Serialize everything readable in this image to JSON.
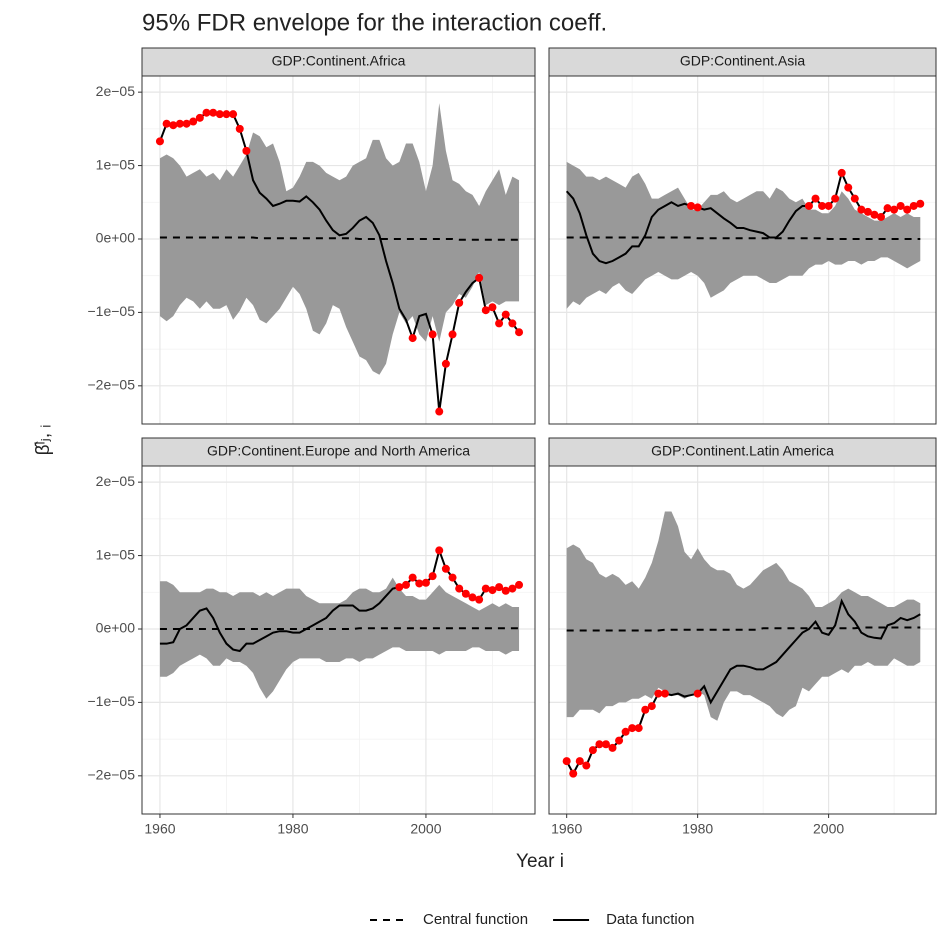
{
  "chart_data": {
    "type": "facet-envelope",
    "title": "95% FDR envelope for the interaction coeff.",
    "x_label": "Year i",
    "y_label": "β̂ˡⱼ, ᵢ",
    "xlim": [
      1957.3,
      2016.4
    ],
    "xticks": [
      1960,
      1980,
      2000
    ],
    "xminor": [
      1970,
      1990,
      2010
    ],
    "ylim": [
      -2.52e-05,
      2.22e-05
    ],
    "yticks": [
      {
        "value": -2e-05,
        "label": "−2e−05"
      },
      {
        "value": -1e-05,
        "label": "−1e−05"
      },
      {
        "value": 0,
        "label": "0e+00"
      },
      {
        "value": 1e-05,
        "label": "1e−05"
      },
      {
        "value": 2e-05,
        "label": "2e−05"
      }
    ],
    "yminor": [
      -1.5e-05,
      -5e-06,
      5e-06,
      1.5e-05
    ],
    "grid": true,
    "band_color": "#999999",
    "outside_color": "#ff0000",
    "legend": "bottom",
    "series": [
      {
        "name": "Central function",
        "color": "#000000",
        "dash": true
      },
      {
        "name": "Data function",
        "color": "#000000",
        "dash": false
      }
    ],
    "x": [
      1960,
      1961,
      1962,
      1963,
      1964,
      1965,
      1966,
      1967,
      1968,
      1969,
      1970,
      1971,
      1972,
      1973,
      1974,
      1975,
      1976,
      1977,
      1978,
      1979,
      1980,
      1981,
      1982,
      1983,
      1984,
      1985,
      1986,
      1987,
      1988,
      1989,
      1990,
      1991,
      1992,
      1993,
      1994,
      1995,
      1996,
      1997,
      1998,
      1999,
      2000,
      2001,
      2002,
      2003,
      2004,
      2005,
      2006,
      2007,
      2008,
      2009,
      2010,
      2011,
      2012,
      2013,
      2014
    ],
    "panels": [
      {
        "title": "GDP:Continent.Africa",
        "upper": [
          1.1e-05,
          1.15e-05,
          1.1e-05,
          1e-05,
          8.5e-06,
          9e-06,
          9.5e-06,
          8.5e-06,
          9e-06,
          8e-06,
          9.5e-06,
          8.5e-06,
          1e-05,
          1.15e-05,
          1.45e-05,
          1.4e-05,
          1.25e-05,
          1.3e-05,
          1.05e-05,
          6.5e-06,
          7e-06,
          8.5e-06,
          1.05e-05,
          1.05e-05,
          1e-05,
          9e-06,
          8.5e-06,
          8e-06,
          8.5e-06,
          1e-05,
          1.05e-05,
          1.1e-05,
          1.35e-05,
          1.35e-05,
          1.1e-05,
          1e-05,
          1.05e-05,
          1.3e-05,
          1.3e-05,
          1.05e-05,
          6.5e-06,
          1e-05,
          1.85e-05,
          1.2e-05,
          8e-06,
          7.5e-06,
          6.5e-06,
          6e-06,
          4.5e-06,
          6.5e-06,
          8e-06,
          9.5e-06,
          6e-06,
          8.5e-06,
          8e-06
        ],
        "lower": [
          -1.05e-05,
          -1.12e-05,
          -1.05e-05,
          -9e-06,
          -8e-06,
          -8.5e-06,
          -9.5e-06,
          -8.5e-06,
          -9.5e-06,
          -9.5e-06,
          -9e-06,
          -1.1e-05,
          -9.8e-06,
          -8e-06,
          -9e-06,
          -1.1e-05,
          -1.15e-05,
          -1.05e-05,
          -9.5e-06,
          -8e-06,
          -6.5e-06,
          -7.5e-06,
          -9.5e-06,
          -1.25e-05,
          -1.3e-05,
          -1.15e-05,
          -9e-06,
          -9.5e-06,
          -1.2e-05,
          -1.4e-05,
          -1.6e-05,
          -1.65e-05,
          -1.8e-05,
          -1.85e-05,
          -1.7e-05,
          -1.3e-05,
          -1e-05,
          -1.15e-05,
          -1.05e-05,
          -1.3e-05,
          -1.4e-05,
          -1.05e-05,
          -1.4e-05,
          -1e-05,
          -9e-06,
          -7.5e-06,
          -8e-06,
          -6.5e-06,
          -4.5e-06,
          -9e-06,
          -8.5e-06,
          -9e-06,
          -8.5e-06,
          -8.5e-06,
          -8.5e-06
        ],
        "values": [
          [
            2e-07,
            2e-07,
            2e-07,
            2e-07,
            2e-07,
            2e-07,
            2e-07,
            2e-07,
            2e-07,
            2e-07,
            2e-07,
            2e-07,
            2e-07,
            2e-07,
            2e-07,
            1e-07,
            1e-07,
            1e-07,
            1e-07,
            1e-07,
            1e-07,
            1e-07,
            1e-07,
            1e-07,
            1e-07,
            1e-07,
            1e-07,
            1e-07,
            1e-07,
            1e-07,
            0,
            0,
            0,
            0,
            0,
            0,
            0,
            0,
            0,
            0,
            0,
            0,
            0,
            0,
            0,
            -1e-07,
            -1e-07,
            -1e-07,
            -1e-07,
            -1e-07,
            -1e-07,
            -1e-07,
            -1e-07,
            -1e-07,
            -1e-07
          ],
          [
            1.33e-05,
            1.57e-05,
            1.55e-05,
            1.57e-05,
            1.57e-05,
            1.6e-05,
            1.65e-05,
            1.72e-05,
            1.72e-05,
            1.7e-05,
            1.7e-05,
            1.7e-05,
            1.5e-05,
            1.2e-05,
            8e-06,
            6.3e-06,
            5.5e-06,
            4.5e-06,
            4.8e-06,
            5.2e-06,
            5.2e-06,
            5.1e-06,
            5.8e-06,
            5e-06,
            4e-06,
            2.5e-06,
            1.2e-06,
            5e-07,
            7e-07,
            1.5e-06,
            2.5e-06,
            3e-06,
            2.2e-06,
            5e-07,
            -3e-06,
            -6e-06,
            -9.5e-06,
            -1.1e-05,
            -1.35e-05,
            -1.05e-05,
            -1.02e-05,
            -1.3e-05,
            -2.35e-05,
            -1.7e-05,
            -1.3e-05,
            -8.7e-06,
            -7.2e-06,
            -6e-06,
            -5.3e-06,
            -9.7e-06,
            -9.3e-06,
            -1.15e-05,
            -1.03e-05,
            -1.15e-05,
            -1.27e-05
          ]
        ]
      },
      {
        "title": "GDP:Continent.Asia",
        "upper": [
          1.05e-05,
          1e-05,
          9.5e-06,
          8.5e-06,
          8.5e-06,
          8e-06,
          8.5e-06,
          8e-06,
          7.5e-06,
          7e-06,
          8.5e-06,
          9e-06,
          7.5e-06,
          5.5e-06,
          5.5e-06,
          6e-06,
          6.5e-06,
          7e-06,
          5.5e-06,
          4e-06,
          4e-06,
          5e-06,
          6e-06,
          6e-06,
          6.5e-06,
          5.5e-06,
          5e-06,
          5.5e-06,
          6e-06,
          6.5e-06,
          6.5e-06,
          5.5e-06,
          7e-06,
          6.5e-06,
          5.5e-06,
          5e-06,
          5.5e-06,
          4e-06,
          4e-06,
          3.5e-06,
          3.5e-06,
          4.5e-06,
          6.5e-06,
          5.5e-06,
          4e-06,
          3.5e-06,
          3e-06,
          2.5e-06,
          2.5e-06,
          3e-06,
          3.5e-06,
          3e-06,
          3.5e-06,
          3e-06,
          3e-06
        ],
        "lower": [
          -9.5e-06,
          -8.5e-06,
          -9e-06,
          -8e-06,
          -7.5e-06,
          -7e-06,
          -7.5e-06,
          -6.5e-06,
          -6e-06,
          -7e-06,
          -7.5e-06,
          -6.5e-06,
          -5.5e-06,
          -5e-06,
          -4.5e-06,
          -5e-06,
          -5.5e-06,
          -5.5e-06,
          -5e-06,
          -4.5e-06,
          -5e-06,
          -6e-06,
          -8e-06,
          -7.5e-06,
          -7e-06,
          -6e-06,
          -5.5e-06,
          -5e-06,
          -5e-06,
          -5e-06,
          -5.5e-06,
          -6e-06,
          -6e-06,
          -5.5e-06,
          -5e-06,
          -5e-06,
          -5e-06,
          -4e-06,
          -3.5e-06,
          -3.5e-06,
          -3e-06,
          -3.5e-06,
          -3.5e-06,
          -3e-06,
          -3e-06,
          -3.5e-06,
          -3e-06,
          -3e-06,
          -2.5e-06,
          -2.5e-06,
          -3e-06,
          -3.5e-06,
          -4e-06,
          -3.5e-06,
          -3e-06
        ],
        "values": [
          [
            2e-07,
            2e-07,
            2e-07,
            2e-07,
            2e-07,
            2e-07,
            2e-07,
            2e-07,
            2e-07,
            2e-07,
            2e-07,
            2e-07,
            2e-07,
            2e-07,
            2e-07,
            2e-07,
            2e-07,
            2e-07,
            2e-07,
            2e-07,
            1e-07,
            1e-07,
            1e-07,
            1e-07,
            1e-07,
            1e-07,
            1e-07,
            1e-07,
            1e-07,
            1e-07,
            1e-07,
            1e-07,
            1e-07,
            1e-07,
            1e-07,
            1e-07,
            1e-07,
            1e-07,
            1e-07,
            1e-07,
            0,
            0,
            0,
            0,
            0,
            0,
            0,
            0,
            0,
            0,
            0,
            0,
            0,
            0,
            0
          ],
          [
            6.5e-06,
            5.5e-06,
            3.5e-06,
            5e-07,
            -2e-06,
            -3e-06,
            -3.3e-06,
            -3e-06,
            -2.5e-06,
            -2e-06,
            -1e-06,
            -1e-06,
            5e-07,
            3e-06,
            4e-06,
            4.5e-06,
            5e-06,
            4.5e-06,
            4.8e-06,
            4.5e-06,
            4.3e-06,
            4e-06,
            4.2e-06,
            3.5e-06,
            2.8e-06,
            2.2e-06,
            1.5e-06,
            1.5e-06,
            1.2e-06,
            1e-06,
            8e-07,
            2e-07,
            2e-07,
            1e-06,
            2.5e-06,
            3.8e-06,
            4.5e-06,
            4.5e-06,
            5.5e-06,
            4.5e-06,
            4.5e-06,
            5.5e-06,
            9e-06,
            7e-06,
            5.5e-06,
            4e-06,
            3.7e-06,
            3.3e-06,
            3e-06,
            4.2e-06,
            4e-06,
            4.5e-06,
            4e-06,
            4.5e-06,
            4.8e-06
          ]
        ]
      },
      {
        "title": "GDP:Continent.Europe and North America",
        "upper": [
          6.5e-06,
          6.5e-06,
          6e-06,
          5e-06,
          5e-06,
          5e-06,
          5e-06,
          5.5e-06,
          5.5e-06,
          5e-06,
          5e-06,
          4.5e-06,
          5e-06,
          5e-06,
          5e-06,
          4.5e-06,
          5e-06,
          4.5e-06,
          5e-06,
          5.5e-06,
          5.5e-06,
          5.5e-06,
          4.5e-06,
          4e-06,
          3.5e-06,
          3.5e-06,
          3.5e-06,
          3.5e-06,
          4e-06,
          5e-06,
          5.5e-06,
          5.5e-06,
          5e-06,
          5e-06,
          5.5e-06,
          7e-06,
          5.5e-06,
          4.5e-06,
          4.5e-06,
          4e-06,
          4e-06,
          5e-06,
          6e-06,
          5e-06,
          4.5e-06,
          4e-06,
          3.5e-06,
          3e-06,
          2.5e-06,
          3e-06,
          3.5e-06,
          3e-06,
          3.5e-06,
          3e-06,
          3e-06
        ],
        "lower": [
          -6.5e-06,
          -6.5e-06,
          -6e-06,
          -5e-06,
          -4.5e-06,
          -4e-06,
          -3.5e-06,
          -4e-06,
          -5e-06,
          -5e-06,
          -4e-06,
          -4.5e-06,
          -4.5e-06,
          -5e-06,
          -6e-06,
          -8e-06,
          -9.5e-06,
          -8.5e-06,
          -7e-06,
          -5.5e-06,
          -4.5e-06,
          -4e-06,
          -4e-06,
          -4e-06,
          -4e-06,
          -4.5e-06,
          -4.5e-06,
          -4.5e-06,
          -4e-06,
          -4e-06,
          -4.5e-06,
          -4e-06,
          -4e-06,
          -3.5e-06,
          -3e-06,
          -2.5e-06,
          -2.5e-06,
          -3e-06,
          -3e-06,
          -3e-06,
          -3e-06,
          -3e-06,
          -3.5e-06,
          -3e-06,
          -3e-06,
          -3e-06,
          -3e-06,
          -2.5e-06,
          -2.5e-06,
          -3e-06,
          -3e-06,
          -3e-06,
          -3.5e-06,
          -3e-06,
          -3e-06
        ],
        "values": [
          [
            0,
            0,
            0,
            0,
            0,
            0,
            0,
            0,
            0,
            0,
            0,
            0,
            0,
            0,
            0,
            0,
            0,
            0,
            0,
            0,
            0,
            0,
            0,
            0,
            0,
            0,
            0,
            0,
            0,
            0,
            1e-07,
            1e-07,
            1e-07,
            1e-07,
            1e-07,
            1e-07,
            1e-07,
            1e-07,
            1e-07,
            1e-07,
            1e-07,
            1e-07,
            1e-07,
            1e-07,
            1e-07,
            1e-07,
            1e-07,
            1e-07,
            1e-07,
            1e-07,
            1e-07,
            1e-07,
            1e-07,
            1e-07,
            1e-07
          ],
          [
            -2e-06,
            -2e-06,
            -1.8e-06,
            0,
            5e-07,
            1.5e-06,
            2.5e-06,
            2.8e-06,
            1.5e-06,
            -5e-07,
            -2e-06,
            -2.8e-06,
            -3e-06,
            -2e-06,
            -2e-06,
            -1.5e-06,
            -1e-06,
            -5e-07,
            -3e-07,
            -3e-07,
            -5e-07,
            -5e-07,
            0,
            5e-07,
            1e-06,
            1.5e-06,
            2.5e-06,
            3.2e-06,
            3.2e-06,
            3.2e-06,
            2.5e-06,
            2.5e-06,
            2.8e-06,
            3.5e-06,
            4.5e-06,
            5.5e-06,
            5.7e-06,
            6e-06,
            7e-06,
            6.2e-06,
            6.3e-06,
            7.2e-06,
            1.07e-05,
            8.2e-06,
            7e-06,
            5.5e-06,
            4.8e-06,
            4.3e-06,
            4e-06,
            5.5e-06,
            5.3e-06,
            5.7e-06,
            5.2e-06,
            5.5e-06,
            6e-06
          ]
        ]
      },
      {
        "title": "GDP:Continent.Latin America",
        "upper": [
          1.1e-05,
          1.15e-05,
          1.1e-05,
          9.5e-06,
          9e-06,
          7.5e-06,
          7e-06,
          7.5e-06,
          7e-06,
          6e-06,
          6.5e-06,
          5.5e-06,
          7e-06,
          9e-06,
          1.2e-05,
          1.6e-05,
          1.6e-05,
          1.4e-05,
          1.05e-05,
          9.5e-06,
          1.1e-05,
          9.5e-06,
          8.5e-06,
          8e-06,
          8e-06,
          7.5e-06,
          6e-06,
          5.5e-06,
          6e-06,
          7e-06,
          8e-06,
          8.5e-06,
          9e-06,
          8e-06,
          6.5e-06,
          6e-06,
          5.5e-06,
          4.5e-06,
          3e-06,
          3e-06,
          3.5e-06,
          4e-06,
          5e-06,
          5.5e-06,
          5e-06,
          4.5e-06,
          4.5e-06,
          4e-06,
          3.5e-06,
          3e-06,
          3e-06,
          3.5e-06,
          4e-06,
          4e-06,
          3.5e-06
        ],
        "lower": [
          -1.2e-05,
          -1.2e-05,
          -1.1e-05,
          -1.1e-05,
          -1.1e-05,
          -1.15e-05,
          -1.05e-05,
          -1.05e-05,
          -1e-05,
          -1e-05,
          -9.5e-06,
          -9.5e-06,
          -9e-06,
          -9.5e-06,
          -8e-06,
          -8.5e-06,
          -9e-06,
          -9e-06,
          -9.5e-06,
          -9e-06,
          -8.5e-06,
          -9e-06,
          -1.2e-05,
          -1.25e-05,
          -1e-05,
          -8.5e-06,
          -8.5e-06,
          -9e-06,
          -9e-06,
          -9.5e-06,
          -1e-05,
          -1.05e-05,
          -1.15e-05,
          -1.2e-05,
          -1.1e-05,
          -1.05e-05,
          -8e-06,
          -8.5e-06,
          -7.5e-06,
          -6.5e-06,
          -6.5e-06,
          -6e-06,
          -5.5e-06,
          -6e-06,
          -5e-06,
          -5e-06,
          -4.5e-06,
          -5e-06,
          -5e-06,
          -5e-06,
          -4e-06,
          -4.5e-06,
          -5e-06,
          -5e-06,
          -4.5e-06
        ],
        "values": [
          [
            -2e-07,
            -2e-07,
            -2e-07,
            -2e-07,
            -2e-07,
            -2e-07,
            -2e-07,
            -2e-07,
            -2e-07,
            -2e-07,
            -2e-07,
            -2e-07,
            -2e-07,
            -2e-07,
            -2e-07,
            -1e-07,
            -1e-07,
            -1e-07,
            -1e-07,
            -1e-07,
            -1e-07,
            -1e-07,
            -1e-07,
            -1e-07,
            -1e-07,
            -1e-07,
            -1e-07,
            -1e-07,
            -1e-07,
            -1e-07,
            1e-07,
            1e-07,
            1e-07,
            1e-07,
            1e-07,
            1e-07,
            1e-07,
            1e-07,
            1e-07,
            1e-07,
            1e-07,
            1e-07,
            1e-07,
            1e-07,
            1e-07,
            2e-07,
            2e-07,
            2e-07,
            2e-07,
            2e-07,
            2e-07,
            2e-07,
            2e-07,
            2e-07,
            2e-07
          ],
          [
            -1.8e-05,
            -1.97e-05,
            -1.8e-05,
            -1.86e-05,
            -1.65e-05,
            -1.57e-05,
            -1.57e-05,
            -1.62e-05,
            -1.52e-05,
            -1.4e-05,
            -1.35e-05,
            -1.35e-05,
            -1.1e-05,
            -1.05e-05,
            -8.8e-06,
            -8.8e-06,
            -9e-06,
            -8.8e-06,
            -9.2e-06,
            -9e-06,
            -8.8e-06,
            -7.8e-06,
            -1e-05,
            -8.5e-06,
            -7e-06,
            -5.5e-06,
            -5e-06,
            -5e-06,
            -5.2e-06,
            -5.5e-06,
            -5.5e-06,
            -5e-06,
            -4.5e-06,
            -3.5e-06,
            -2.5e-06,
            -1.5e-06,
            -5e-07,
            0,
            1e-06,
            -5e-07,
            -8e-07,
            5e-07,
            3.8e-06,
            2e-06,
            1e-06,
            -5e-07,
            -1e-06,
            -1.2e-06,
            -1.3e-06,
            5e-07,
            8e-07,
            1.5e-06,
            1.2e-06,
            1.5e-06,
            2e-06
          ]
        ]
      }
    ]
  }
}
